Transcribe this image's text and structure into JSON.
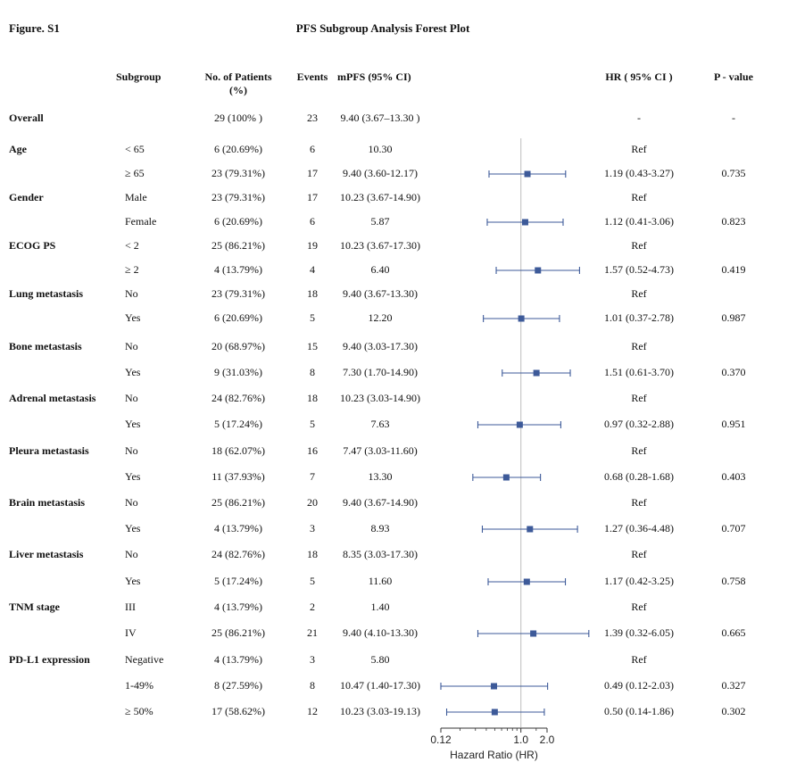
{
  "figure_label": "Figure. S1",
  "title": "PFS Subgroup Analysis Forest Plot",
  "headers": {
    "subgroup": "Subgroup",
    "patients_line1": "No. of Patients",
    "patients_line2": "(%)",
    "events": "Events",
    "mpfs": "mPFS (95% CI)",
    "hr": "HR ( 95% CI )",
    "p": "P - value"
  },
  "colors": {
    "marker": "#3d5a99",
    "line": "#3d5a99",
    "refline": "#c8c8c8"
  },
  "chart_data": {
    "type": "forest",
    "title": "PFS Subgroup Analysis Forest Plot",
    "xlabel": "Hazard Ratio (HR)",
    "x_scale": "log",
    "x_ticks": [
      0.12,
      1.0,
      2.0
    ],
    "x_tick_labels": [
      "0.12",
      "1.0",
      "2.0"
    ],
    "reference_line": 1.0,
    "xlim": [
      0.12,
      6.05
    ],
    "rows": [
      {
        "group": "Overall",
        "level": "",
        "patients": "29 (100% )",
        "events": "23",
        "mpfs": "9.40 (3.67–13.30 )",
        "hr_text": "-",
        "p": "-",
        "hr": null,
        "lo": null,
        "hi": null
      },
      {
        "group": "Age",
        "level": "< 65",
        "patients": "6 (20.69%)",
        "events": "6",
        "mpfs": "10.30",
        "hr_text": "Ref",
        "p": "",
        "hr": null,
        "lo": null,
        "hi": null
      },
      {
        "group": "",
        "level": "≥ 65",
        "patients": "23 (79.31%)",
        "events": "17",
        "mpfs": "9.40 (3.60-12.17)",
        "hr_text": "1.19 (0.43-3.27)",
        "p": "0.735",
        "hr": 1.19,
        "lo": 0.43,
        "hi": 3.27
      },
      {
        "group": "Gender",
        "level": "Male",
        "patients": "23 (79.31%)",
        "events": "17",
        "mpfs": "10.23 (3.67-14.90)",
        "hr_text": "Ref",
        "p": "",
        "hr": null,
        "lo": null,
        "hi": null
      },
      {
        "group": "",
        "level": "Female",
        "patients": "6 (20.69%)",
        "events": "6",
        "mpfs": "5.87",
        "hr_text": "1.12 (0.41-3.06)",
        "p": "0.823",
        "hr": 1.12,
        "lo": 0.41,
        "hi": 3.06
      },
      {
        "group": "ECOG PS",
        "level": "< 2",
        "patients": "25 (86.21%)",
        "events": "19",
        "mpfs": "10.23 (3.67-17.30)",
        "hr_text": "Ref",
        "p": "",
        "hr": null,
        "lo": null,
        "hi": null
      },
      {
        "group": "",
        "level": "≥ 2",
        "patients": "4 (13.79%)",
        "events": "4",
        "mpfs": "6.40",
        "hr_text": "1.57 (0.52-4.73)",
        "p": "0.419",
        "hr": 1.57,
        "lo": 0.52,
        "hi": 4.73
      },
      {
        "group": "Lung metastasis",
        "level": "No",
        "patients": "23 (79.31%)",
        "events": "18",
        "mpfs": "9.40 (3.67-13.30)",
        "hr_text": "Ref",
        "p": "",
        "hr": null,
        "lo": null,
        "hi": null
      },
      {
        "group": "",
        "level": "Yes",
        "patients": "6 (20.69%)",
        "events": "5",
        "mpfs": "12.20",
        "hr_text": "1.01 (0.37-2.78)",
        "p": "0.987",
        "hr": 1.01,
        "lo": 0.37,
        "hi": 2.78
      },
      {
        "group": "Bone metastasis",
        "level": "No",
        "patients": "20 (68.97%)",
        "events": "15",
        "mpfs": "9.40 (3.03-17.30)",
        "hr_text": "Ref",
        "p": "",
        "hr": null,
        "lo": null,
        "hi": null
      },
      {
        "group": "",
        "level": "Yes",
        "patients": "9 (31.03%)",
        "events": "8",
        "mpfs": "7.30 (1.70-14.90)",
        "hr_text": "1.51 (0.61-3.70)",
        "p": "0.370",
        "hr": 1.51,
        "lo": 0.61,
        "hi": 3.7
      },
      {
        "group": "Adrenal metastasis",
        "level": "No",
        "patients": "24 (82.76%)",
        "events": "18",
        "mpfs": "10.23 (3.03-14.90)",
        "hr_text": "Ref",
        "p": "",
        "hr": null,
        "lo": null,
        "hi": null
      },
      {
        "group": "",
        "level": "Yes",
        "patients": "5 (17.24%)",
        "events": "5",
        "mpfs": "7.63",
        "hr_text": "0.97 (0.32-2.88)",
        "p": "0.951",
        "hr": 0.97,
        "lo": 0.32,
        "hi": 2.88
      },
      {
        "group": "Pleura metastasis",
        "level": "No",
        "patients": "18 (62.07%)",
        "events": "16",
        "mpfs": "7.47 (3.03-11.60)",
        "hr_text": "Ref",
        "p": "",
        "hr": null,
        "lo": null,
        "hi": null
      },
      {
        "group": "",
        "level": "Yes",
        "patients": "11 (37.93%)",
        "events": "7",
        "mpfs": "13.30",
        "hr_text": "0.68 (0.28-1.68)",
        "p": "0.403",
        "hr": 0.68,
        "lo": 0.28,
        "hi": 1.68
      },
      {
        "group": "Brain metastasis",
        "level": "No",
        "patients": "25 (86.21%)",
        "events": "20",
        "mpfs": "9.40 (3.67-14.90)",
        "hr_text": "Ref",
        "p": "",
        "hr": null,
        "lo": null,
        "hi": null
      },
      {
        "group": "",
        "level": "Yes",
        "patients": "4 (13.79%)",
        "events": "3",
        "mpfs": "8.93",
        "hr_text": "1.27 (0.36-4.48)",
        "p": "0.707",
        "hr": 1.27,
        "lo": 0.36,
        "hi": 4.48
      },
      {
        "group": "Liver metastasis",
        "level": "No",
        "patients": "24 (82.76%)",
        "events": "18",
        "mpfs": "8.35 (3.03-17.30)",
        "hr_text": "Ref",
        "p": "",
        "hr": null,
        "lo": null,
        "hi": null
      },
      {
        "group": "",
        "level": "Yes",
        "patients": "5 (17.24%)",
        "events": "5",
        "mpfs": "11.60",
        "hr_text": "1.17 (0.42-3.25)",
        "p": "0.758",
        "hr": 1.17,
        "lo": 0.42,
        "hi": 3.25
      },
      {
        "group": "TNM stage",
        "level": "III",
        "patients": "4 (13.79%)",
        "events": "2",
        "mpfs": "1.40",
        "hr_text": "Ref",
        "p": "",
        "hr": null,
        "lo": null,
        "hi": null
      },
      {
        "group": "",
        "level": "IV",
        "patients": "25 (86.21%)",
        "events": "21",
        "mpfs": "9.40 (4.10-13.30)",
        "hr_text": "1.39 (0.32-6.05)",
        "p": "0.665",
        "hr": 1.39,
        "lo": 0.32,
        "hi": 6.05
      },
      {
        "group": "PD-L1 expression",
        "level": "Negative",
        "patients": "4 (13.79%)",
        "events": "3",
        "mpfs": "5.80",
        "hr_text": "Ref",
        "p": "",
        "hr": null,
        "lo": null,
        "hi": null
      },
      {
        "group": "",
        "level": "1-49%",
        "patients": "8 (27.59%)",
        "events": "8",
        "mpfs": "10.47 (1.40-17.30)",
        "hr_text": "0.49 (0.12-2.03)",
        "p": "0.327",
        "hr": 0.49,
        "lo": 0.12,
        "hi": 2.03
      },
      {
        "group": "",
        "level": "≥ 50%",
        "patients": "17 (58.62%)",
        "events": "12",
        "mpfs": "10.23 (3.03-19.13)",
        "hr_text": "0.50 (0.14-1.86)",
        "p": "0.302",
        "hr": 0.5,
        "lo": 0.14,
        "hi": 1.86
      }
    ]
  }
}
